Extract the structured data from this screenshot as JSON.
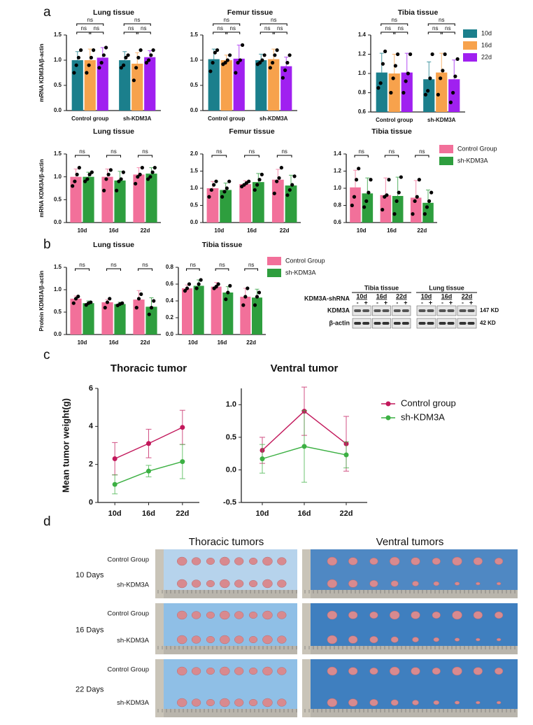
{
  "panels": [
    "a",
    "b",
    "c",
    "d"
  ],
  "chart_data": [
    {
      "type": "bar",
      "title": "Lung tissue",
      "y_label": "mRNA KDM3A/β-actin",
      "categories": [
        "Control group",
        "sh-KDM3A"
      ],
      "ylim": [
        0,
        1.5
      ],
      "yticks": [
        {
          "value": 0,
          "label": "0.0"
        },
        0.5,
        {
          "value": 1,
          "label": "1.0"
        },
        1.5
      ],
      "series": [
        {
          "name": "10d",
          "color": "#1b7f8c",
          "values": [
            1.0,
            1.0
          ],
          "errors": [
            0.17,
            0.17
          ],
          "points": [
            [
              0.75,
              0.9,
              1.05,
              1.2
            ],
            [
              0.85,
              0.9,
              1.05,
              1.1
            ]
          ]
        },
        {
          "name": "16d",
          "color": "#f7a24c",
          "values": [
            1.0,
            0.93
          ],
          "errors": [
            0.22,
            0.22
          ],
          "points": [
            [
              0.75,
              0.9,
              1.05,
              1.2
            ],
            [
              0.6,
              0.85,
              1.05,
              1.2
            ]
          ]
        },
        {
          "name": "22d",
          "color": "#a020f0",
          "values": [
            1.05,
            1.06
          ],
          "errors": [
            0.2,
            0.13
          ],
          "points": [
            [
              0.85,
              0.95,
              1.1,
              1.25
            ],
            [
              0.95,
              1.0,
              1.1,
              1.2
            ]
          ]
        }
      ],
      "annotations": [
        "ns",
        "ns",
        "ns",
        "ns",
        "ns",
        "ns"
      ]
    },
    {
      "type": "bar",
      "title": "Femur tissue",
      "categories": [
        "Control group",
        "sh-KDM3A"
      ],
      "ylim": [
        0,
        1.5
      ],
      "yticks": [
        {
          "value": 0,
          "label": "0.0"
        },
        0.5,
        {
          "value": 1,
          "label": "1.0"
        },
        1.5
      ],
      "series": [
        {
          "name": "10d",
          "color": "#1b7f8c",
          "values": [
            1.02,
            1.0
          ],
          "errors": [
            0.2,
            0.12
          ],
          "points": [
            [
              0.78,
              0.95,
              1.15,
              1.2
            ],
            [
              0.92,
              0.95,
              1.0,
              1.1
            ]
          ]
        },
        {
          "name": "16d",
          "color": "#f7a24c",
          "values": [
            1.0,
            1.02
          ],
          "errors": [
            0.1,
            0.2
          ],
          "points": [
            [
              0.92,
              0.95,
              1.0,
              1.1
            ],
            [
              0.85,
              0.95,
              1.1,
              1.2
            ]
          ]
        },
        {
          "name": "22d",
          "color": "#a020f0",
          "values": [
            1.03,
            0.88
          ],
          "errors": [
            0.27,
            0.18
          ],
          "points": [
            [
              0.75,
              0.95,
              1.0,
              1.3
            ],
            [
              0.65,
              0.8,
              0.95,
              1.1
            ]
          ]
        }
      ],
      "annotations": [
        "ns",
        "ns",
        "ns",
        "ns",
        "ns",
        "ns"
      ]
    },
    {
      "type": "bar",
      "title": "Tibia tissue",
      "categories": [
        "Control group",
        "sh-KDM3A"
      ],
      "legend": "right",
      "ylim": [
        0.6,
        1.4
      ],
      "yticks": [
        0.6,
        0.8,
        {
          "value": 1,
          "label": "1.0"
        },
        1.2,
        1.4
      ],
      "series": [
        {
          "name": "10d",
          "color": "#1b7f8c",
          "values": [
            1.01,
            0.94
          ],
          "errors": [
            0.2,
            0.18
          ],
          "points": [
            [
              0.85,
              0.9,
              1.1,
              1.23
            ],
            [
              0.78,
              0.82,
              0.95,
              1.2
            ]
          ]
        },
        {
          "name": "16d",
          "color": "#f7a24c",
          "values": [
            1.0,
            1.01
          ],
          "errors": [
            0.2,
            0.2
          ],
          "points": [
            [
              0.8,
              0.95,
              1.08,
              1.2
            ],
            [
              0.78,
              0.95,
              1.03,
              1.2
            ]
          ]
        },
        {
          "name": "22d",
          "color": "#a020f0",
          "values": [
            1.01,
            0.94
          ],
          "errors": [
            0.2,
            0.2
          ],
          "points": [
            [
              0.8,
              0.92,
              1.0,
              1.2
            ],
            [
              0.7,
              0.8,
              0.97,
              1.15
            ]
          ]
        }
      ],
      "annotations": [
        "ns",
        "ns",
        "ns",
        "ns",
        "ns",
        "ns"
      ]
    },
    {
      "type": "bar",
      "title": "Lung tissue",
      "y_label": "mRNA KDM3A/β-actin",
      "categories": [
        "10d",
        "16d",
        "22d"
      ],
      "ylim": [
        0,
        1.5
      ],
      "yticks": [
        {
          "value": 0,
          "label": "0.0"
        },
        0.5,
        {
          "value": 1,
          "label": "1.0"
        },
        1.5
      ],
      "series": [
        {
          "name": "Control Group",
          "color": "#f2709a",
          "values": [
            1.0,
            1.0,
            1.05
          ],
          "errors": [
            0.17,
            0.17,
            0.15
          ],
          "points": [
            [
              0.8,
              0.9,
              1.05,
              1.2
            ],
            [
              0.7,
              0.95,
              1.05,
              1.15
            ],
            [
              0.85,
              1.0,
              1.05,
              1.2
            ]
          ]
        },
        {
          "name": "sh-KDM3A",
          "color": "#2e9e3e",
          "values": [
            1.0,
            0.92,
            1.07
          ],
          "errors": [
            0.1,
            0.2,
            0.13
          ],
          "points": [
            [
              0.9,
              0.95,
              1.05,
              1.1
            ],
            [
              0.7,
              0.9,
              0.95,
              1.1
            ],
            [
              0.95,
              1.0,
              1.1,
              1.2
            ]
          ]
        }
      ],
      "annotations": [
        "ns",
        "ns",
        "ns"
      ]
    },
    {
      "type": "bar",
      "title": "Femur tissue",
      "categories": [
        "10d",
        "16d",
        "22d"
      ],
      "ylim": [
        0,
        2
      ],
      "yticks": [
        {
          "value": 0,
          "label": "0.0"
        },
        0.5,
        {
          "value": 1,
          "label": "1.0"
        },
        1.5,
        {
          "value": 2,
          "label": "2.0"
        }
      ],
      "series": [
        {
          "name": "Control Group",
          "color": "#f2709a",
          "values": [
            1.0,
            1.12,
            1.25
          ],
          "errors": [
            0.2,
            0.1,
            0.3
          ],
          "points": [
            [
              0.75,
              0.95,
              1.1,
              1.2
            ],
            [
              1.05,
              1.1,
              1.15,
              1.2
            ],
            [
              0.85,
              1.2,
              1.3,
              1.6
            ]
          ]
        },
        {
          "name": "sh-KDM3A",
          "color": "#2e9e3e",
          "values": [
            0.95,
            1.18,
            1.08
          ],
          "errors": [
            0.2,
            0.25,
            0.3
          ],
          "points": [
            [
              0.75,
              0.9,
              1.0,
              1.2
            ],
            [
              0.95,
              1.1,
              1.25,
              1.4
            ],
            [
              0.8,
              0.95,
              1.1,
              1.35
            ]
          ]
        }
      ],
      "annotations": [
        "ns",
        "ns",
        "ns"
      ]
    },
    {
      "type": "bar",
      "title": "Tibia tissue",
      "categories": [
        "10d",
        "16d",
        "22d"
      ],
      "legend": "right",
      "ylim": [
        0.6,
        1.4
      ],
      "yticks": [
        0.6,
        0.8,
        {
          "value": 1,
          "label": "1.0"
        },
        1.2,
        1.4
      ],
      "series": [
        {
          "name": "Control Group",
          "color": "#f2709a",
          "values": [
            1.01,
            0.92,
            0.89
          ],
          "errors": [
            0.2,
            0.2,
            0.2
          ],
          "points": [
            [
              0.8,
              0.9,
              1.1,
              1.23
            ],
            [
              0.75,
              0.9,
              0.92,
              1.1
            ],
            [
              0.7,
              0.85,
              0.9,
              1.1
            ]
          ]
        },
        {
          "name": "sh-KDM3A",
          "color": "#2e9e3e",
          "values": [
            0.94,
            0.91,
            0.83
          ],
          "errors": [
            0.18,
            0.22,
            0.15
          ],
          "points": [
            [
              0.78,
              0.85,
              0.95,
              1.1
            ],
            [
              0.7,
              0.85,
              0.95,
              1.13
            ],
            [
              0.7,
              0.78,
              0.85,
              0.95
            ]
          ]
        }
      ],
      "annotations": [
        "ns",
        "ns",
        "ns"
      ]
    },
    {
      "type": "bar",
      "title": "Lung tissue",
      "y_label": "Protein KDM3A/β-actin",
      "categories": [
        "10d",
        "16d",
        "22d"
      ],
      "ylim": [
        0,
        1.5
      ],
      "yticks": [
        {
          "value": 0,
          "label": "0.0"
        },
        0.5,
        {
          "value": 1,
          "label": "1.0"
        },
        1.5
      ],
      "series": [
        {
          "name": "Control Group",
          "color": "#f2709a",
          "values": [
            0.8,
            0.72,
            0.78
          ],
          "errors": [
            0.06,
            0.06,
            0.2
          ],
          "points": [
            [
              0.7,
              0.8,
              0.85
            ],
            [
              0.6,
              0.72,
              0.8
            ],
            [
              0.6,
              0.8,
              0.9
            ]
          ]
        },
        {
          "name": "sh-KDM3A",
          "color": "#2e9e3e",
          "values": [
            0.7,
            0.68,
            0.62
          ],
          "errors": [
            0.05,
            0.04,
            0.2
          ],
          "points": [
            [
              0.66,
              0.7,
              0.72
            ],
            [
              0.65,
              0.68,
              0.7
            ],
            [
              0.45,
              0.6,
              0.75
            ]
          ]
        }
      ],
      "annotations": [
        "ns",
        "ns",
        "ns"
      ]
    },
    {
      "type": "bar",
      "title": "Tibia tissue",
      "categories": [
        "10d",
        "16d",
        "22d"
      ],
      "legend": "right",
      "ylim": [
        0,
        0.8
      ],
      "yticks": [
        {
          "value": 0,
          "label": "0.0"
        },
        0.2,
        0.4,
        0.6,
        0.8
      ],
      "series": [
        {
          "name": "Control Group",
          "color": "#f2709a",
          "values": [
            0.55,
            0.57,
            0.45
          ],
          "errors": [
            0.04,
            0.05,
            0.1
          ],
          "points": [
            [
              0.52,
              0.55,
              0.6
            ],
            [
              0.55,
              0.57,
              0.6
            ],
            [
              0.35,
              0.45,
              0.55
            ]
          ]
        },
        {
          "name": "sh-KDM3A",
          "color": "#2e9e3e",
          "values": [
            0.58,
            0.5,
            0.44
          ],
          "errors": [
            0.07,
            0.07,
            0.1
          ],
          "points": [
            [
              0.55,
              0.6,
              0.65
            ],
            [
              0.42,
              0.5,
              0.58
            ],
            [
              0.35,
              0.45,
              0.5
            ]
          ]
        }
      ],
      "annotations": [
        "ns",
        "ns",
        "ns"
      ]
    },
    {
      "type": "line",
      "title": "Thoracic tumor",
      "y_label": "Mean tumor weight(g)",
      "categories": [
        "10d",
        "16d",
        "22d"
      ],
      "ylim": [
        0,
        6
      ],
      "yticks": [
        0,
        2,
        4,
        6
      ],
      "series": [
        {
          "name": "Control group",
          "color": "#c2185b",
          "values": [
            2.3,
            3.1,
            3.95
          ],
          "errors": [
            0.85,
            0.75,
            0.9
          ]
        },
        {
          "name": "sh-KDM3A",
          "color": "#3cb043",
          "values": [
            0.95,
            1.65,
            2.15
          ],
          "errors": [
            0.5,
            0.3,
            0.9
          ]
        }
      ]
    },
    {
      "type": "line",
      "title": "Ventral tumor",
      "categories": [
        "10d",
        "16d",
        "22d"
      ],
      "legend": "right",
      "ylim": [
        -0.5,
        1.25
      ],
      "yticks": [
        -0.5,
        {
          "value": 0,
          "label": "0.0"
        },
        0.5,
        {
          "value": 1,
          "label": "1.0"
        }
      ],
      "series": [
        {
          "name": "Control group",
          "color": "#c2185b",
          "values": [
            0.3,
            0.9,
            0.4
          ],
          "errors": [
            0.2,
            0.37,
            0.42
          ]
        },
        {
          "name": "sh-KDM3A",
          "color": "#3cb043",
          "values": [
            0.17,
            0.36,
            0.23
          ],
          "errors": [
            0.22,
            0.55,
            0.2
          ]
        }
      ]
    }
  ],
  "western_blot": {
    "row_label": "KDM3A-shRNA",
    "tissues": [
      "Tibia tissue",
      "Lung tissue"
    ],
    "timepoints": [
      "10d",
      "16d",
      "22d",
      "10d",
      "16d",
      "22d"
    ],
    "signs": [
      "-",
      "+"
    ],
    "bands": [
      "KDM3A",
      "β-actin"
    ],
    "sizes": [
      "147 KD",
      "42 KD"
    ]
  },
  "photos": {
    "columns": [
      "Thoracic tumors",
      "Ventral tumors"
    ],
    "rows": [
      "10 Days",
      "16 Days",
      "22 Days"
    ],
    "groups": [
      "Control Group",
      "sh-KDM3A"
    ]
  }
}
